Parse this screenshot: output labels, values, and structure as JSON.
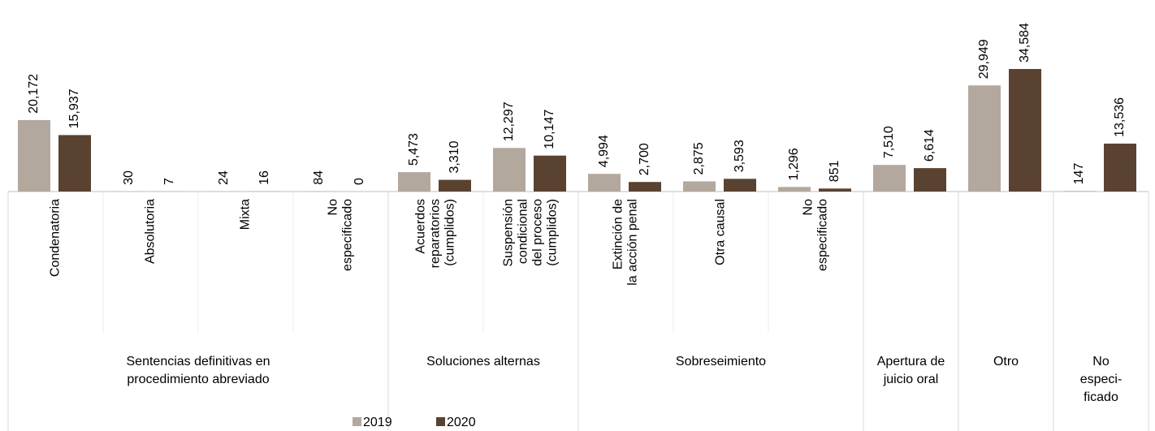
{
  "chart_data": {
    "type": "bar",
    "groups": [
      {
        "label": "Sentencias definitivas en\nprocedimiento abreviado",
        "categories": [
          "Condenatoria",
          "Absolutoria",
          "Mixta",
          "No\nespecificado"
        ]
      },
      {
        "label": "Soluciones alternas",
        "categories": [
          "Acuerdos\nreparatorios\n(cumplidos)",
          "Suspensión\ncondicional\ndel proceso\n(cumplidos)"
        ]
      },
      {
        "label": "Sobreseimiento",
        "categories": [
          "Extinción de\nla acción penal",
          "Otra causal",
          "No\nespecificado"
        ]
      },
      {
        "label": "Apertura de\njuicio oral",
        "categories": [
          null
        ]
      },
      {
        "label": "Otro",
        "categories": [
          null
        ]
      },
      {
        "label": "No\nespeci-\nficado",
        "categories": [
          null
        ]
      }
    ],
    "series": [
      {
        "name": "2019",
        "color": "#b3a89e",
        "values": [
          20172,
          30,
          24,
          84,
          5473,
          12297,
          4994,
          2875,
          1296,
          7510,
          29949,
          147
        ],
        "value_labels": [
          "20,172",
          "30",
          "24",
          "84",
          "5,473",
          "12,297",
          "4,994",
          "2,875",
          "1,296",
          "7,510",
          "29,949",
          "147"
        ]
      },
      {
        "name": "2020",
        "color": "#5a4231",
        "values": [
          15937,
          7,
          16,
          0,
          3310,
          10147,
          2700,
          3593,
          851,
          6614,
          34584,
          13536
        ],
        "value_labels": [
          "15,937",
          "7",
          "16",
          "0",
          "3,310",
          "10,147",
          "2,700",
          "3,593",
          "851",
          "6,614",
          "34,584",
          "13,536"
        ]
      }
    ],
    "legend": "bottom"
  }
}
